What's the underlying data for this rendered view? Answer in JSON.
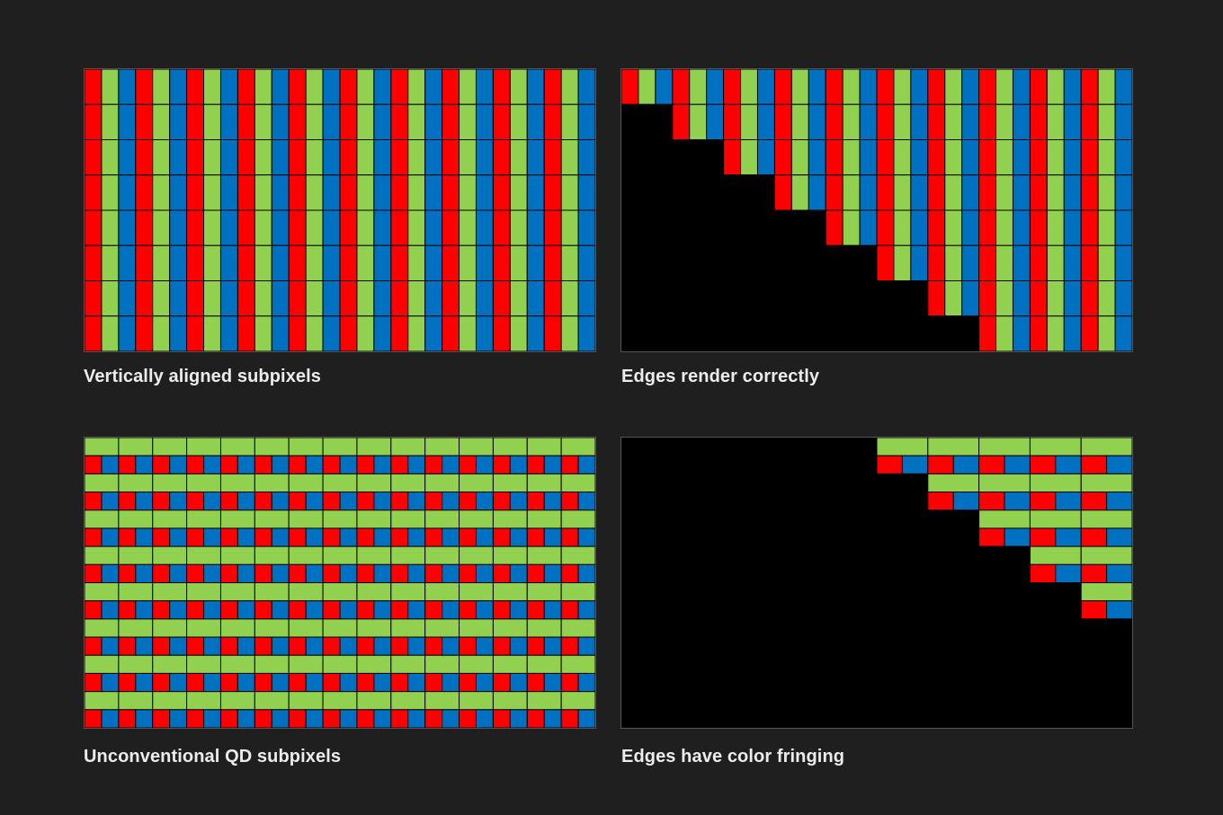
{
  "colors": {
    "red": "#ff0000",
    "green": "#92d050",
    "blue": "#0070c0",
    "black": "#000000",
    "grid": "#000000",
    "background": "#1f1f1f",
    "caption": "#ececec"
  },
  "panels": [
    {
      "id": "tl",
      "caption": "Vertically aligned subpixels",
      "layout": "vertical-stripes",
      "pixel_columns": 10,
      "pixel_rows": 8,
      "subpixel_order": [
        "red",
        "green",
        "blue"
      ],
      "edge": "none"
    },
    {
      "id": "tr",
      "caption": "Edges render correctly",
      "layout": "vertical-stripes",
      "pixel_columns": 10,
      "pixel_rows": 8,
      "subpixel_order": [
        "red",
        "green",
        "blue"
      ],
      "edge": "diagonal-staircase"
    },
    {
      "id": "bl",
      "caption": "Unconventional QD subpixels",
      "layout": "qd-stacked",
      "pixel_columns": 15,
      "pixel_rows": 8,
      "subpixel_order": [
        "green",
        "red",
        "blue"
      ],
      "edge": "none"
    },
    {
      "id": "br",
      "caption": "Edges have color fringing",
      "layout": "qd-stacked",
      "pixel_columns": 10,
      "pixel_rows": 8,
      "subpixel_order": [
        "green",
        "red",
        "blue"
      ],
      "edge": "diagonal-staircase"
    }
  ]
}
